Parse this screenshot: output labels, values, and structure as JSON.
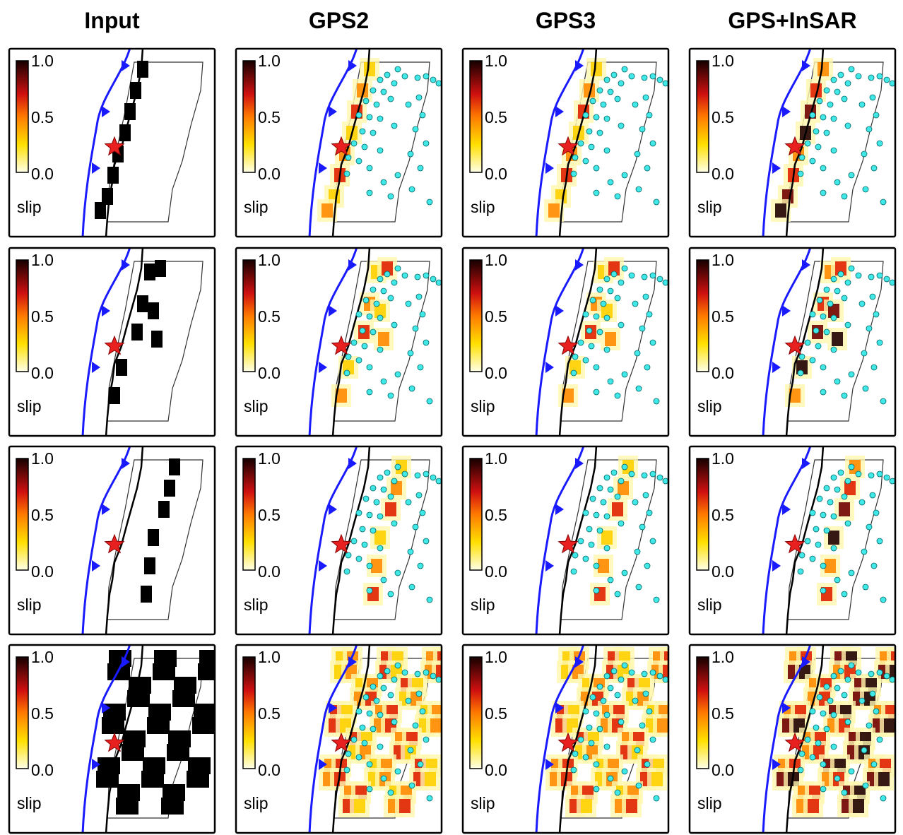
{
  "columns": [
    "Input",
    "GPS2",
    "GPS3",
    "GPS+InSAR"
  ],
  "colorbar": {
    "ticks": [
      "1.0",
      "0.5",
      "0.0"
    ],
    "label": "slip"
  }
}
